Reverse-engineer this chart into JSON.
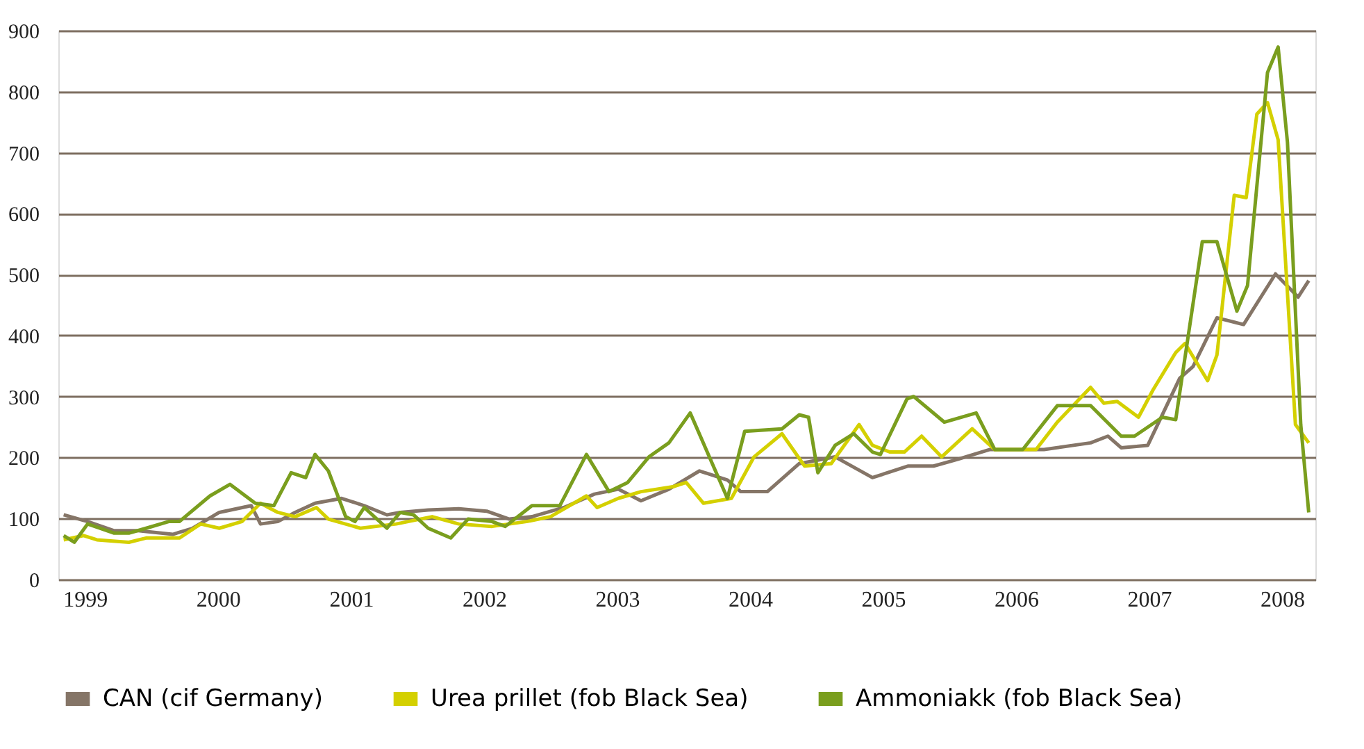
{
  "chart_data": {
    "type": "line",
    "xlim": [
      1998.8,
      2008.25
    ],
    "xticks": [
      1999,
      2000,
      2001,
      2002,
      2003,
      2004,
      2005,
      2006,
      2007,
      2008
    ],
    "ylim": [
      0,
      900
    ],
    "yticks": [
      0,
      100,
      200,
      300,
      400,
      500,
      600,
      700,
      800,
      900
    ],
    "grid": "y",
    "legend": "bottom",
    "marker": "none",
    "line_style": "solid",
    "series": [
      {
        "name": "CAN (cif Germany)",
        "color": "#857567",
        "x": [
          1998.84,
          1999.02,
          1999.22,
          1999.4,
          1999.66,
          1999.81,
          2000.01,
          2000.25,
          2000.32,
          2000.45,
          2000.58,
          2000.73,
          2000.93,
          2001.1,
          2001.27,
          2001.37,
          2001.58,
          2001.81,
          2002.02,
          2002.19,
          2002.36,
          2002.6,
          2002.83,
          2003.01,
          2003.18,
          2003.39,
          2003.62,
          2003.83,
          2003.93,
          2004.13,
          2004.37,
          2004.64,
          2004.92,
          2005.19,
          2005.38,
          2005.56,
          2005.8,
          2006.21,
          2006.56,
          2006.69,
          2006.79,
          2006.99,
          2007.23,
          2007.33,
          2007.51,
          2007.71,
          2007.95,
          2008.12,
          2008.2
        ],
        "values": [
          106,
          95,
          80,
          80,
          74,
          84,
          110,
          121,
          91,
          95,
          110,
          125,
          133,
          121,
          106,
          110,
          114,
          116,
          112,
          99,
          103,
          118,
          140,
          148,
          129,
          148,
          178,
          163,
          144,
          144,
          190,
          201,
          167,
          186,
          186,
          197,
          213,
          213,
          224,
          235,
          216,
          220,
          330,
          349,
          429,
          418,
          501,
          463,
          490
        ]
      },
      {
        "name": "Urea prillet (fob Black Sea)",
        "color": "#d4d000",
        "x": [
          1998.84,
          1998.99,
          1999.09,
          1999.33,
          1999.46,
          1999.71,
          1999.87,
          2000.01,
          2000.18,
          2000.32,
          2000.38,
          2000.45,
          2000.58,
          2000.74,
          2000.83,
          2001.07,
          2001.34,
          2001.61,
          2001.81,
          2002.06,
          2002.32,
          2002.5,
          2002.77,
          2002.85,
          2003.01,
          2003.18,
          2003.42,
          2003.52,
          2003.65,
          2003.86,
          2004.03,
          2004.24,
          2004.41,
          2004.61,
          2004.82,
          2004.92,
          2005.05,
          2005.16,
          2005.29,
          2005.44,
          2005.67,
          2005.84,
          2006.15,
          2006.31,
          2006.56,
          2006.66,
          2006.76,
          2006.92,
          2007.03,
          2007.2,
          2007.27,
          2007.44,
          2007.51,
          2007.64,
          2007.73,
          2007.81,
          2007.89,
          2007.97,
          2008.1,
          2008.2
        ],
        "values": [
          65,
          72,
          65,
          61,
          68,
          68,
          91,
          84,
          95,
          125,
          118,
          110,
          103,
          118,
          99,
          84,
          91,
          103,
          91,
          87,
          95,
          103,
          137,
          118,
          133,
          144,
          152,
          159,
          125,
          133,
          201,
          239,
          186,
          190,
          254,
          220,
          209,
          209,
          235,
          201,
          247,
          213,
          213,
          258,
          315,
          289,
          292,
          266,
          311,
          372,
          387,
          326,
          368,
          630,
          626,
          763,
          782,
          721,
          254,
          224
        ]
      },
      {
        "name": "Ammoniakk (fob Black Sea)",
        "color": "#7a9e1e",
        "x": [
          1998.84,
          1998.92,
          1999.02,
          1999.22,
          1999.33,
          1999.46,
          1999.63,
          1999.71,
          1999.94,
          2000.09,
          2000.28,
          2000.42,
          2000.55,
          2000.66,
          2000.73,
          2000.83,
          2000.96,
          2001.03,
          2001.1,
          2001.27,
          2001.37,
          2001.47,
          2001.58,
          2001.75,
          2001.88,
          2002.06,
          2002.16,
          2002.36,
          2002.57,
          2002.77,
          2002.94,
          2003.08,
          2003.24,
          2003.39,
          2003.55,
          2003.83,
          2003.96,
          2004.24,
          2004.37,
          2004.44,
          2004.51,
          2004.64,
          2004.78,
          2004.92,
          2004.98,
          2005.18,
          2005.23,
          2005.46,
          2005.7,
          2005.84,
          2006.05,
          2006.31,
          2006.56,
          2006.79,
          2006.89,
          2007.1,
          2007.2,
          2007.4,
          2007.51,
          2007.66,
          2007.74,
          2007.89,
          2007.97,
          2008.04,
          2008.14,
          2008.2
        ],
        "values": [
          72,
          61,
          91,
          76,
          76,
          84,
          95,
          95,
          137,
          156,
          125,
          121,
          175,
          167,
          205,
          178,
          103,
          95,
          118,
          84,
          110,
          106,
          84,
          68,
          99,
          95,
          87,
          121,
          121,
          205,
          144,
          159,
          201,
          224,
          273,
          133,
          243,
          247,
          270,
          266,
          175,
          220,
          239,
          209,
          205,
          296,
          300,
          258,
          273,
          213,
          213,
          285,
          285,
          235,
          235,
          266,
          262,
          554,
          554,
          440,
          482,
          831,
          873,
          717,
          254,
          110
        ]
      }
    ]
  }
}
